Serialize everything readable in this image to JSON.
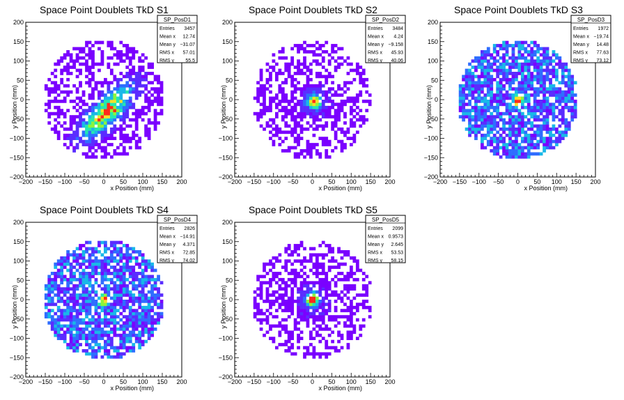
{
  "canvas": {
    "background": "#ffffff"
  },
  "chart_data": [
    {
      "type": "heatmap",
      "title": "Space Point Doublets TkD S1",
      "xlabel": "x Position (mm)",
      "ylabel": "y Position (mm)",
      "xlim": [
        -200,
        200
      ],
      "ylim": [
        -200,
        200
      ],
      "x_ticks": [
        "−200",
        "−150",
        "−100",
        "−50",
        "0",
        "50",
        "100",
        "150",
        "200"
      ],
      "y_ticks": [
        "−200",
        "−150",
        "−100",
        "−50",
        "0",
        "50",
        "100",
        "150",
        "200"
      ],
      "stats": {
        "name": "SP_PosD1",
        "rows": [
          {
            "label": "Entries",
            "value": "3457"
          },
          {
            "label": "Mean x",
            "value": "12.74"
          },
          {
            "label": "Mean y",
            "value": "−31.07"
          },
          {
            "label": "RMS x",
            "value": "57.01"
          },
          {
            "label": "RMS y",
            "value": "55.5"
          }
        ]
      },
      "distribution": {
        "radius": 155,
        "center": [
          12,
          -31
        ],
        "hotspot": [
          10,
          -30
        ],
        "shape": "diagonal band"
      }
    },
    {
      "type": "heatmap",
      "title": "Space Point Doublets TkD S2",
      "xlabel": "x Position (mm)",
      "ylabel": "y Position (mm)",
      "xlim": [
        -200,
        200
      ],
      "ylim": [
        -200,
        200
      ],
      "x_ticks": [
        "−200",
        "−150",
        "−100",
        "−50",
        "0",
        "50",
        "100",
        "150",
        "200"
      ],
      "y_ticks": [
        "−200",
        "−150",
        "−100",
        "−50",
        "0",
        "50",
        "100",
        "150",
        "200"
      ],
      "stats": {
        "name": "SP_PosD2",
        "rows": [
          {
            "label": "Entries",
            "value": "3484"
          },
          {
            "label": "Mean x",
            "value": "4.24"
          },
          {
            "label": "Mean y",
            "value": "−9.158"
          },
          {
            "label": "RMS x",
            "value": "45.93"
          },
          {
            "label": "RMS y",
            "value": "40.06"
          }
        ]
      },
      "distribution": {
        "radius": 155,
        "center": [
          4,
          -9
        ],
        "hotspot": [
          5,
          -5
        ],
        "shape": "central spot"
      }
    },
    {
      "type": "heatmap",
      "title": "Space Point Doublets TkD S3",
      "xlabel": "x Position (mm)",
      "ylabel": "y Position (mm)",
      "xlim": [
        -200,
        200
      ],
      "ylim": [
        -200,
        200
      ],
      "x_ticks": [
        "−200",
        "−150",
        "−100",
        "−50",
        "0",
        "50",
        "100",
        "150",
        "200"
      ],
      "y_ticks": [
        "−200",
        "−150",
        "−100",
        "−50",
        "0",
        "50",
        "100",
        "150",
        "200"
      ],
      "stats": {
        "name": "SP_PosD3",
        "rows": [
          {
            "label": "Entries",
            "value": "1972"
          },
          {
            "label": "Mean x",
            "value": "−19.74"
          },
          {
            "label": "Mean y",
            "value": "14.48"
          },
          {
            "label": "RMS x",
            "value": "77.63"
          },
          {
            "label": "RMS y",
            "value": "73.12"
          }
        ]
      },
      "distribution": {
        "radius": 155,
        "center": [
          -20,
          14
        ],
        "hotspot": [
          0,
          -5
        ],
        "shape": "uniform disc"
      }
    },
    {
      "type": "heatmap",
      "title": "Space Point Doublets TkD S4",
      "xlabel": "x Position (mm)",
      "ylabel": "y Position (mm)",
      "xlim": [
        -200,
        200
      ],
      "ylim": [
        -200,
        200
      ],
      "x_ticks": [
        "−200",
        "−150",
        "−100",
        "−50",
        "0",
        "50",
        "100",
        "150",
        "200"
      ],
      "y_ticks": [
        "−200",
        "−150",
        "−100",
        "−50",
        "0",
        "50",
        "100",
        "150",
        "200"
      ],
      "stats": {
        "name": "SP_PosD4",
        "rows": [
          {
            "label": "Entries",
            "value": "2826"
          },
          {
            "label": "Mean x",
            "value": "−14.91"
          },
          {
            "label": "Mean y",
            "value": "4.371"
          },
          {
            "label": "RMS x",
            "value": "72.85"
          },
          {
            "label": "RMS y",
            "value": "74.02"
          }
        ]
      },
      "distribution": {
        "radius": 155,
        "center": [
          -15,
          4
        ],
        "hotspot": [
          0,
          0
        ],
        "shape": "uniform disc"
      }
    },
    {
      "type": "heatmap",
      "title": "Space Point Doublets TkD S5",
      "xlabel": "x Position (mm)",
      "ylabel": "y Position (mm)",
      "xlim": [
        -200,
        200
      ],
      "ylim": [
        -200,
        200
      ],
      "x_ticks": [
        "−200",
        "−150",
        "−100",
        "−50",
        "0",
        "50",
        "100",
        "150",
        "200"
      ],
      "y_ticks": [
        "−200",
        "−150",
        "−100",
        "−50",
        "0",
        "50",
        "100",
        "150",
        "200"
      ],
      "stats": {
        "name": "SP_PosD5",
        "rows": [
          {
            "label": "Entries",
            "value": "2099"
          },
          {
            "label": "Mean x",
            "value": "0.9573"
          },
          {
            "label": "Mean y",
            "value": "2.645"
          },
          {
            "label": "RMS x",
            "value": "53.53"
          },
          {
            "label": "RMS y",
            "value": "58.15"
          }
        ]
      },
      "distribution": {
        "radius": 155,
        "center": [
          1,
          3
        ],
        "hotspot": [
          0,
          0
        ],
        "shape": "central spot"
      }
    }
  ],
  "palette": [
    "#7a00ff",
    "#5a2cff",
    "#2f6dff",
    "#19b8e8",
    "#25e8b0",
    "#8bf53c",
    "#f5e02a",
    "#ff2a1a"
  ]
}
